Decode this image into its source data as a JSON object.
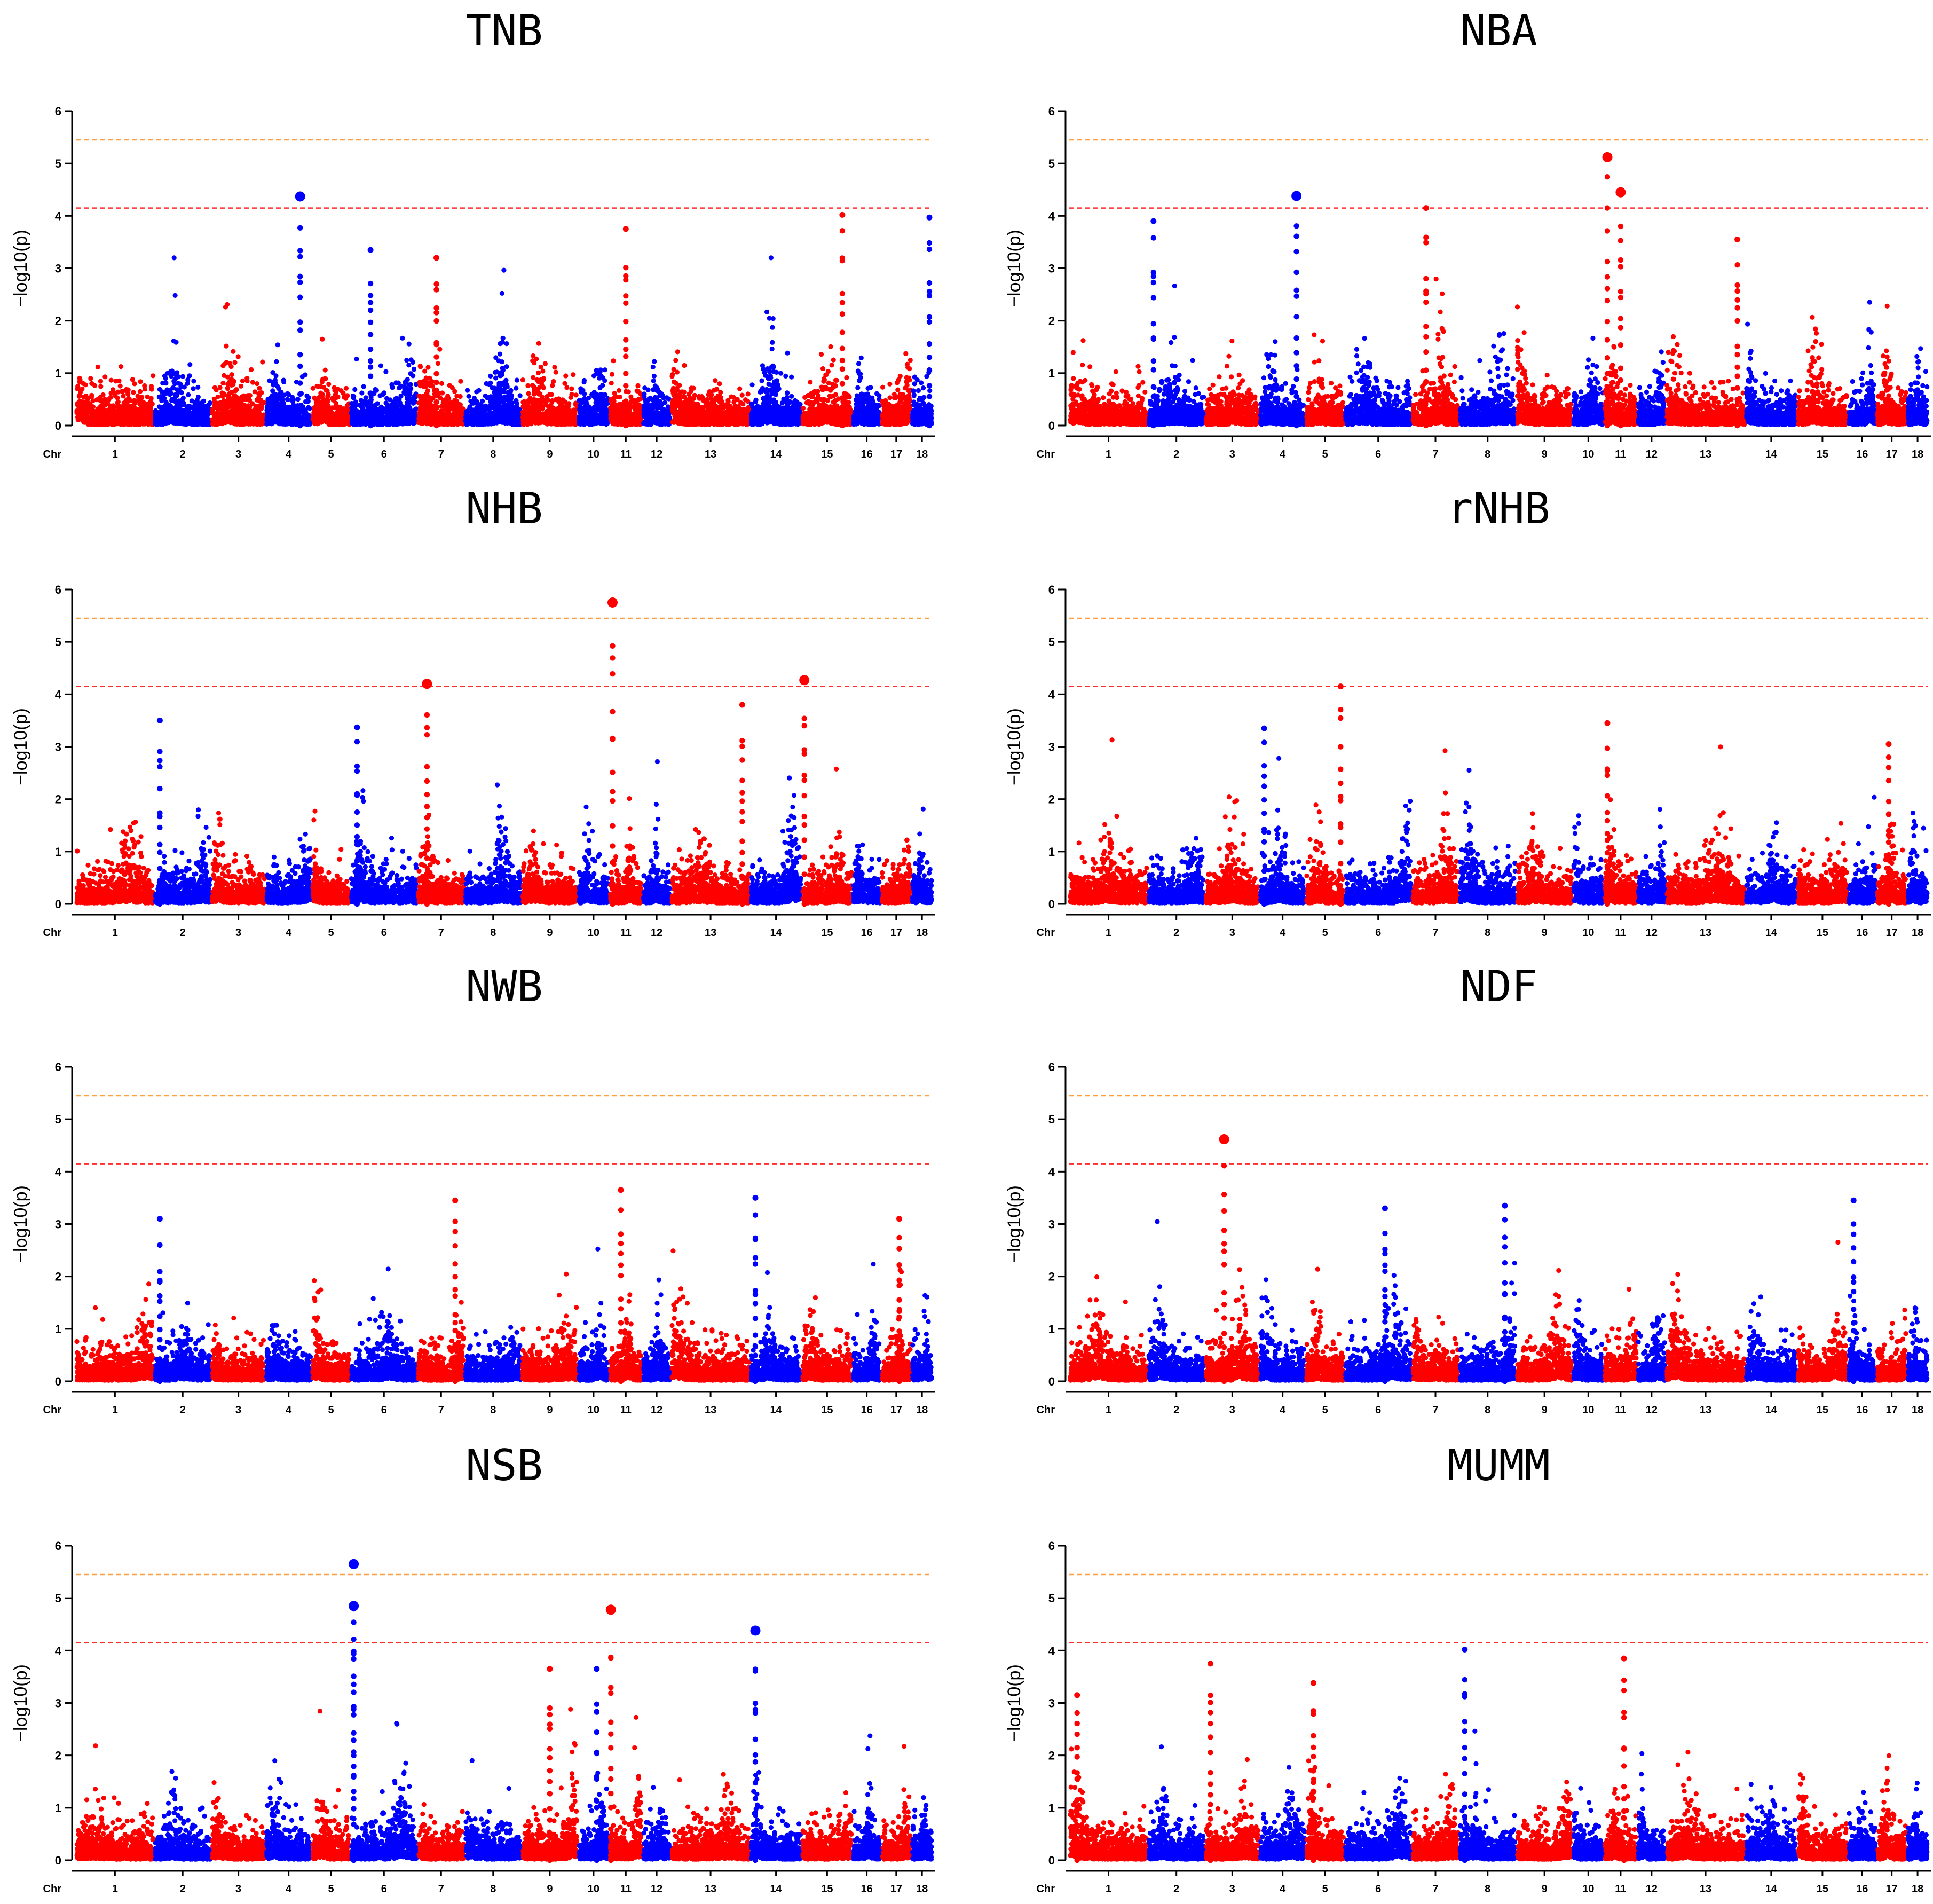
{
  "colors": {
    "odd": "#ff0000",
    "even": "#0000ff",
    "sig_suggestive": "#ff2a2a",
    "sig_genomewide": "#ffa040"
  },
  "chart_data": [
    {
      "type": "scatter",
      "title": "TNB",
      "ylabel": "−log10(p)",
      "xlabel": "Chr",
      "ylim": [
        0,
        6
      ],
      "yticks": [
        "0",
        "1",
        "2",
        "3",
        "4",
        "5",
        "6"
      ],
      "thresholds": [
        4.15,
        5.45
      ],
      "chromosomes": [
        "1",
        "2",
        "3",
        "4",
        "5",
        "6",
        "7",
        "8",
        "9",
        "10",
        "11",
        "12",
        "13",
        "14",
        "15",
        "16",
        "17",
        "18"
      ],
      "peaks": [
        {
          "chr": 4,
          "pos": 0.75,
          "y": 4.37
        },
        {
          "chr": 6,
          "pos": 0.3,
          "y": 3.35
        },
        {
          "chr": 7,
          "pos": 0.4,
          "y": 3.2
        },
        {
          "chr": 11,
          "pos": 0.5,
          "y": 3.75
        },
        {
          "chr": 15,
          "pos": 0.8,
          "y": 4.02
        },
        {
          "chr": 18,
          "pos": 0.85,
          "y": 3.97
        }
      ]
    },
    {
      "type": "scatter",
      "title": "NBA",
      "ylabel": "−log10(p)",
      "xlabel": "Chr",
      "ylim": [
        0,
        6
      ],
      "yticks": [
        "0",
        "1",
        "2",
        "3",
        "4",
        "5",
        "6"
      ],
      "thresholds": [
        4.15,
        5.45
      ],
      "chromosomes": [
        "1",
        "2",
        "3",
        "4",
        "5",
        "6",
        "7",
        "8",
        "9",
        "10",
        "11",
        "12",
        "13",
        "14",
        "15",
        "16",
        "17",
        "18"
      ],
      "peaks": [
        {
          "chr": 2,
          "pos": 0.1,
          "y": 3.9
        },
        {
          "chr": 4,
          "pos": 0.8,
          "y": 4.38
        },
        {
          "chr": 7,
          "pos": 0.3,
          "y": 4.15
        },
        {
          "chr": 11,
          "pos": 0.1,
          "y": 5.12
        },
        {
          "chr": 11,
          "pos": 0.5,
          "y": 4.45
        },
        {
          "chr": 13,
          "pos": 0.9,
          "y": 3.55
        }
      ]
    },
    {
      "type": "scatter",
      "title": "NHB",
      "ylabel": "−log10(p)",
      "xlabel": "Chr",
      "ylim": [
        0,
        6
      ],
      "yticks": [
        "0",
        "1",
        "2",
        "3",
        "4",
        "5",
        "6"
      ],
      "thresholds": [
        4.15,
        5.45
      ],
      "chromosomes": [
        "1",
        "2",
        "3",
        "4",
        "5",
        "6",
        "7",
        "8",
        "9",
        "10",
        "11",
        "12",
        "13",
        "14",
        "15",
        "16",
        "17",
        "18"
      ],
      "peaks": [
        {
          "chr": 2,
          "pos": 0.1,
          "y": 3.5
        },
        {
          "chr": 7,
          "pos": 0.2,
          "y": 4.2
        },
        {
          "chr": 11,
          "pos": 0.1,
          "y": 5.75
        },
        {
          "chr": 13,
          "pos": 0.9,
          "y": 3.8
        },
        {
          "chr": 15,
          "pos": 0.05,
          "y": 4.27
        },
        {
          "chr": 6,
          "pos": 0.1,
          "y": 3.37
        }
      ]
    },
    {
      "type": "scatter",
      "title": "rNHB",
      "ylabel": "−log10(p)",
      "xlabel": "Chr",
      "ylim": [
        0,
        6
      ],
      "yticks": [
        "0",
        "1",
        "2",
        "3",
        "4",
        "5",
        "6"
      ],
      "thresholds": [
        4.15,
        5.45
      ],
      "chromosomes": [
        "1",
        "2",
        "3",
        "4",
        "5",
        "6",
        "7",
        "8",
        "9",
        "10",
        "11",
        "12",
        "13",
        "14",
        "15",
        "16",
        "17",
        "18"
      ],
      "peaks": [
        {
          "chr": 5,
          "pos": 0.9,
          "y": 4.15
        },
        {
          "chr": 4,
          "pos": 0.1,
          "y": 3.35
        },
        {
          "chr": 11,
          "pos": 0.1,
          "y": 3.45
        },
        {
          "chr": 17,
          "pos": 0.4,
          "y": 3.05
        }
      ]
    },
    {
      "type": "scatter",
      "title": "NWB",
      "ylabel": "−log10(p)",
      "xlabel": "Chr",
      "ylim": [
        0,
        6
      ],
      "yticks": [
        "0",
        "1",
        "2",
        "3",
        "4",
        "5",
        "6"
      ],
      "thresholds": [
        4.15,
        5.45
      ],
      "chromosomes": [
        "1",
        "2",
        "3",
        "4",
        "5",
        "6",
        "7",
        "8",
        "9",
        "10",
        "11",
        "12",
        "13",
        "14",
        "15",
        "16",
        "17",
        "18"
      ],
      "peaks": [
        {
          "chr": 11,
          "pos": 0.35,
          "y": 3.65
        },
        {
          "chr": 14,
          "pos": 0.1,
          "y": 3.5
        },
        {
          "chr": 7,
          "pos": 0.8,
          "y": 3.45
        },
        {
          "chr": 2,
          "pos": 0.1,
          "y": 3.1
        },
        {
          "chr": 17,
          "pos": 0.6,
          "y": 3.1
        }
      ]
    },
    {
      "type": "scatter",
      "title": "NDF",
      "ylabel": "−log10(p)",
      "xlabel": "Chr",
      "ylim": [
        0,
        6
      ],
      "yticks": [
        "0",
        "1",
        "2",
        "3",
        "4",
        "5",
        "6"
      ],
      "thresholds": [
        4.15,
        5.45
      ],
      "chromosomes": [
        "1",
        "2",
        "3",
        "4",
        "5",
        "6",
        "7",
        "8",
        "9",
        "10",
        "11",
        "12",
        "13",
        "14",
        "15",
        "16",
        "17",
        "18"
      ],
      "peaks": [
        {
          "chr": 3,
          "pos": 0.35,
          "y": 4.62
        },
        {
          "chr": 16,
          "pos": 0.2,
          "y": 3.45
        },
        {
          "chr": 8,
          "pos": 0.8,
          "y": 3.35
        },
        {
          "chr": 6,
          "pos": 0.6,
          "y": 3.3
        }
      ]
    },
    {
      "type": "scatter",
      "title": "NSB",
      "ylabel": "−log10(p)",
      "xlabel": "Chr",
      "ylim": [
        0,
        6
      ],
      "yticks": [
        "0",
        "1",
        "2",
        "3",
        "4",
        "5",
        "6"
      ],
      "thresholds": [
        4.15,
        5.45
      ],
      "chromosomes": [
        "1",
        "2",
        "3",
        "4",
        "5",
        "6",
        "7",
        "8",
        "9",
        "10",
        "11",
        "12",
        "13",
        "14",
        "15",
        "16",
        "17",
        "18"
      ],
      "peaks": [
        {
          "chr": 6,
          "pos": 0.05,
          "y": 5.65
        },
        {
          "chr": 6,
          "pos": 0.05,
          "y": 4.85
        },
        {
          "chr": 11,
          "pos": 0.05,
          "y": 4.78
        },
        {
          "chr": 14,
          "pos": 0.1,
          "y": 4.38
        },
        {
          "chr": 9,
          "pos": 0.5,
          "y": 3.65
        },
        {
          "chr": 10,
          "pos": 0.6,
          "y": 3.65
        }
      ]
    },
    {
      "type": "scatter",
      "title": "MUMM",
      "ylabel": "−log10(p)",
      "xlabel": "Chr",
      "ylim": [
        0,
        6
      ],
      "yticks": [
        "0",
        "1",
        "2",
        "3",
        "4",
        "5",
        "6"
      ],
      "thresholds": [
        4.15,
        5.45
      ],
      "chromosomes": [
        "1",
        "2",
        "3",
        "4",
        "5",
        "6",
        "7",
        "8",
        "9",
        "10",
        "11",
        "12",
        "13",
        "14",
        "15",
        "16",
        "17",
        "18"
      ],
      "peaks": [
        {
          "chr": 8,
          "pos": 0.1,
          "y": 4.02
        },
        {
          "chr": 11,
          "pos": 0.6,
          "y": 3.85
        },
        {
          "chr": 3,
          "pos": 0.1,
          "y": 3.75
        },
        {
          "chr": 5,
          "pos": 0.2,
          "y": 3.38
        },
        {
          "chr": 1,
          "pos": 0.1,
          "y": 3.15
        }
      ]
    }
  ]
}
